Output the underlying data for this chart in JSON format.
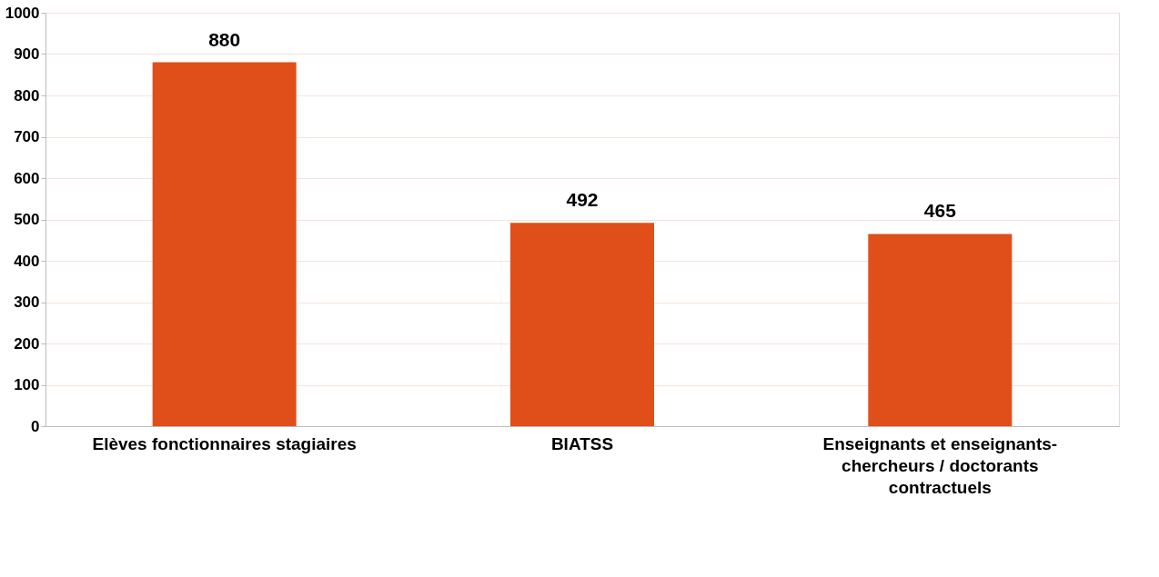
{
  "chart_data": {
    "type": "bar",
    "categories": [
      "Elèves fonctionnaires stagiaires",
      "BIATSS",
      "Enseignants et enseignants-chercheurs / doctorants contractuels"
    ],
    "values": [
      880,
      492,
      465
    ],
    "color": "#e04e1a",
    "ylim": [
      0,
      1000
    ],
    "yticks": [
      0,
      100,
      200,
      300,
      400,
      500,
      600,
      700,
      800,
      900,
      1000
    ],
    "grid": "y",
    "data_labels": true
  }
}
